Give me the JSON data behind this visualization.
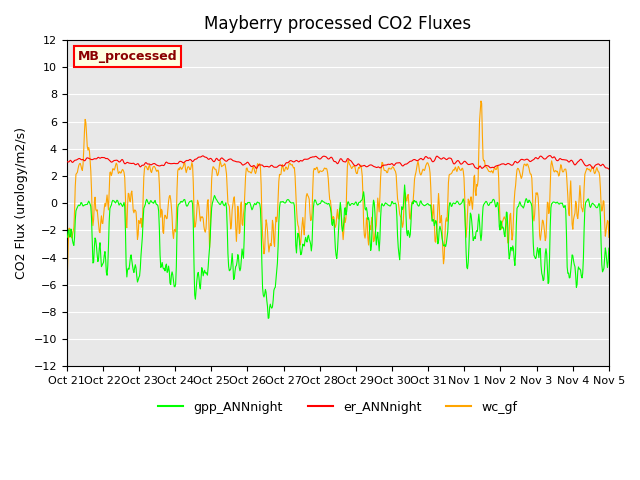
{
  "title": "Mayberry processed CO2 Fluxes",
  "ylabel": "CO2 Flux (urology/m2/s)",
  "ylim": [
    -12,
    12
  ],
  "yticks": [
    -12,
    -10,
    -8,
    -6,
    -4,
    -2,
    0,
    2,
    4,
    6,
    8,
    10,
    12
  ],
  "xtick_labels": [
    "Oct 21",
    "Oct 22",
    "Oct 23",
    "Oct 24",
    "Oct 25",
    "Oct 26",
    "Oct 27",
    "Oct 28",
    "Oct 29",
    "Oct 30",
    "Oct 31",
    "Nov 1",
    "Nov 2",
    "Nov 3",
    "Nov 4",
    "Nov 5"
  ],
  "legend_label": "MB_processed",
  "line_green": "lime",
  "line_red": "red",
  "line_orange": "orange",
  "bg_color": "#e8e8e8",
  "figsize": [
    6.4,
    4.8
  ],
  "dpi": 100
}
